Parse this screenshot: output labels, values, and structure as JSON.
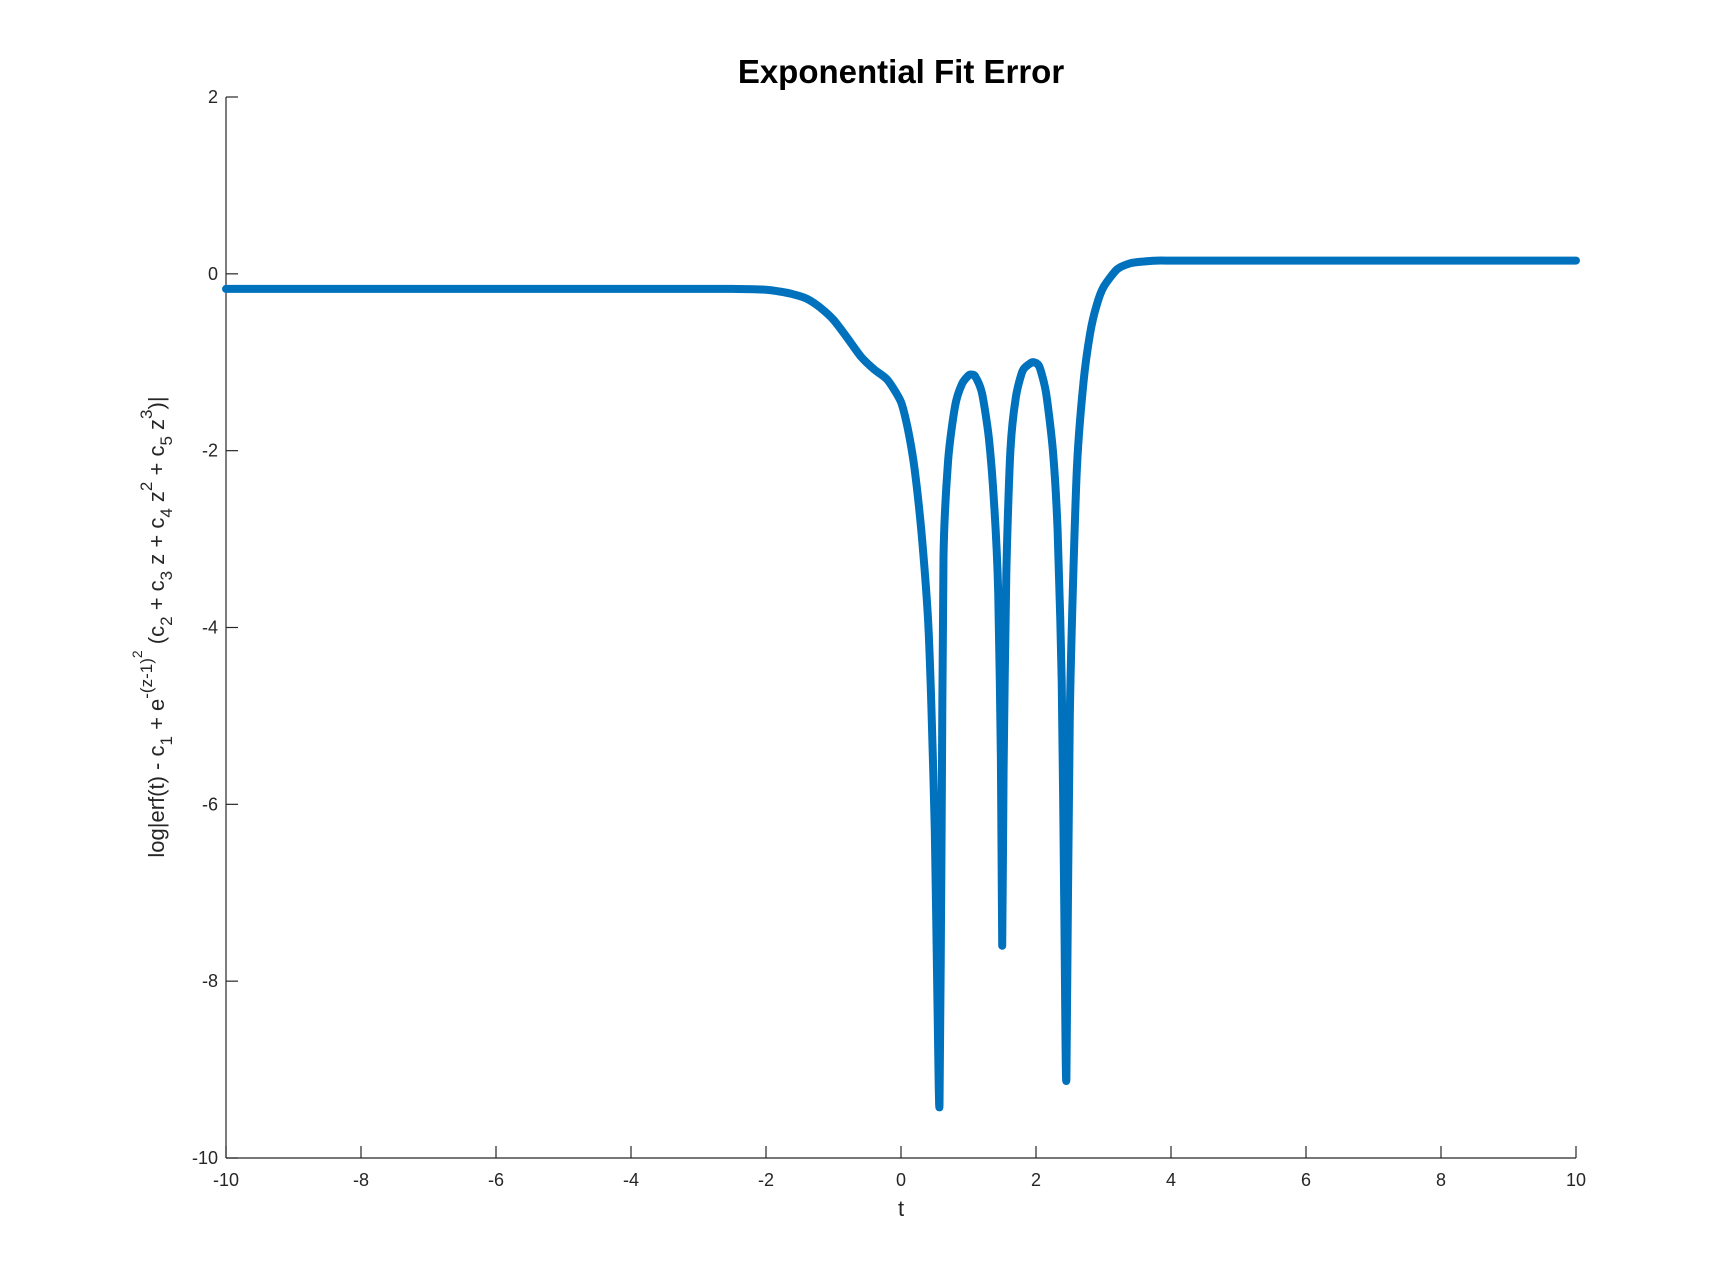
{
  "chart_data": {
    "type": "line",
    "title": "Exponential Fit Error",
    "xlabel": "t",
    "ylabel": {
      "parts": [
        {
          "t": "log|erf(t) - c",
          "s": "n"
        },
        {
          "t": "1",
          "s": "sub"
        },
        {
          "t": " + e",
          "s": "n"
        },
        {
          "t": "-(z-1)",
          "s": "sup"
        },
        {
          "t": "2",
          "s": "sup2"
        },
        {
          "t": " (c",
          "s": "n"
        },
        {
          "t": "2",
          "s": "sub"
        },
        {
          "t": " + c",
          "s": "n"
        },
        {
          "t": "3",
          "s": "sub"
        },
        {
          "t": " z + c",
          "s": "n"
        },
        {
          "t": "4",
          "s": "sub"
        },
        {
          "t": " z",
          "s": "n"
        },
        {
          "t": "2",
          "s": "sup"
        },
        {
          "t": " + c",
          "s": "n"
        },
        {
          "t": "5",
          "s": "sub"
        },
        {
          "t": " z",
          "s": "n"
        },
        {
          "t": "3",
          "s": "sup"
        },
        {
          "t": ")|",
          "s": "n"
        }
      ]
    },
    "xlim": [
      -10,
      10
    ],
    "ylim": [
      -10,
      2
    ],
    "xticks": [
      -10,
      -8,
      -6,
      -4,
      -2,
      0,
      2,
      4,
      6,
      8,
      10
    ],
    "xtick_labels": [
      "-10",
      "-8",
      "-6",
      "-4",
      "-2",
      "0",
      "2",
      "4",
      "6",
      "8",
      "10"
    ],
    "yticks": [
      -10,
      -8,
      -6,
      -4,
      -2,
      0,
      2
    ],
    "ytick_labels": [
      "-10",
      "-8",
      "-6",
      "-4",
      "-2",
      "0",
      "2"
    ],
    "grid": false,
    "legend": "none",
    "series": [
      {
        "color": "#0072BD",
        "x": [
          -10,
          -8,
          -6,
          -4,
          -3,
          -2.5,
          -2,
          -1.8,
          -1.6,
          -1.4,
          -1.2,
          -1.0,
          -0.8,
          -0.6,
          -0.4,
          -0.2,
          0,
          0.1,
          0.2,
          0.3,
          0.4,
          0.45,
          0.5,
          0.54,
          0.57,
          0.6,
          0.63,
          0.7,
          0.8,
          0.9,
          1.0,
          1.05,
          1.1,
          1.2,
          1.3,
          1.38,
          1.44,
          1.48,
          1.5,
          1.52,
          1.56,
          1.62,
          1.7,
          1.8,
          1.9,
          1.97,
          2.05,
          2.15,
          2.25,
          2.32,
          2.38,
          2.42,
          2.45,
          2.5,
          2.6,
          2.7,
          2.8,
          2.9,
          3.0,
          3.2,
          3.4,
          3.6,
          3.8,
          4.0,
          4.5,
          5,
          6,
          8,
          10
        ],
        "y": [
          -0.17,
          -0.17,
          -0.17,
          -0.17,
          -0.17,
          -0.17,
          -0.18,
          -0.2,
          -0.23,
          -0.28,
          -0.38,
          -0.52,
          -0.72,
          -0.93,
          -1.08,
          -1.2,
          -1.45,
          -1.75,
          -2.2,
          -2.9,
          -3.9,
          -4.9,
          -6.3,
          -8.2,
          -9.4,
          -6.5,
          -3.2,
          -2.1,
          -1.5,
          -1.25,
          -1.15,
          -1.14,
          -1.16,
          -1.35,
          -1.85,
          -2.6,
          -3.6,
          -5.5,
          -7.6,
          -5.6,
          -3.4,
          -2.0,
          -1.4,
          -1.1,
          -1.02,
          -1.0,
          -1.05,
          -1.35,
          -2.0,
          -2.9,
          -4.6,
          -7.2,
          -9.1,
          -5.0,
          -2.3,
          -1.25,
          -0.68,
          -0.35,
          -0.15,
          0.05,
          0.12,
          0.14,
          0.15,
          0.15,
          0.15,
          0.15,
          0.15,
          0.15,
          0.15
        ]
      }
    ]
  }
}
